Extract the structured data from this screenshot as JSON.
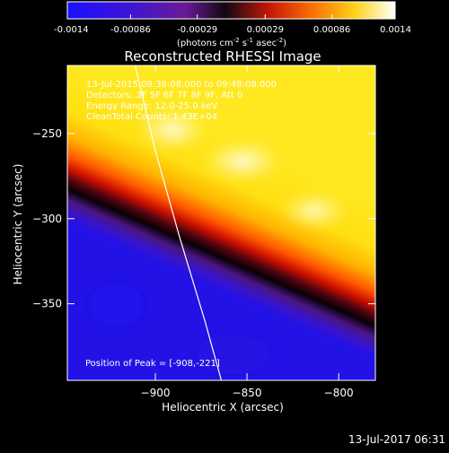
{
  "chart_data": {
    "type": "heatmap",
    "title": "Reconstructed RHESSI Image",
    "colorbar": {
      "ticks": [
        "-0.0014",
        "-0.00086",
        "-0.00029",
        "0.00029",
        "0.00086",
        "0.0014"
      ],
      "tick_values": [
        -0.0014,
        -0.00086,
        -0.00029,
        0.00029,
        0.00086,
        0.0014
      ],
      "range": [
        -0.0014,
        0.0014
      ],
      "units_label": "(photons cm",
      "units_sup1": "-2",
      "units_mid": " s",
      "units_sup2": "-1",
      "units_mid2": " asec",
      "units_sup3": "-2",
      "units_end": ")"
    },
    "xlabel": "Heliocentric X (arcsec)",
    "ylabel": "Heliocentric Y (arcsec)",
    "xlim": [
      -948,
      -780
    ],
    "ylim": [
      -395,
      -210
    ],
    "xticks": [
      -900,
      -850,
      -800
    ],
    "xtick_labels": [
      "−900",
      "−850",
      "−800"
    ],
    "yticks": [
      -250,
      -300,
      -350
    ],
    "ytick_labels": [
      "−250",
      "−300",
      "−350"
    ],
    "annotations": [
      "13-Jul-2015 09:38:08.000 to 09:48:08.000",
      "Detectors: 3F 5F 6F 7F 8F 9F, Att 0",
      "Energy Range: 12.0-25.0 keV",
      "CleanTotal Counts: 1.43E+04"
    ],
    "peak_label": "Position of Peak = [-908,-221]",
    "peak": [
      -908,
      -221
    ],
    "limb_points": [
      [
        -911,
        -210
      ],
      [
        -900,
        -260
      ],
      [
        -887,
        -310
      ],
      [
        -873,
        -360
      ],
      [
        -864,
        -395
      ]
    ],
    "grid": false
  },
  "footer": {
    "timestamp": "13-Jul-2017 06:31"
  }
}
